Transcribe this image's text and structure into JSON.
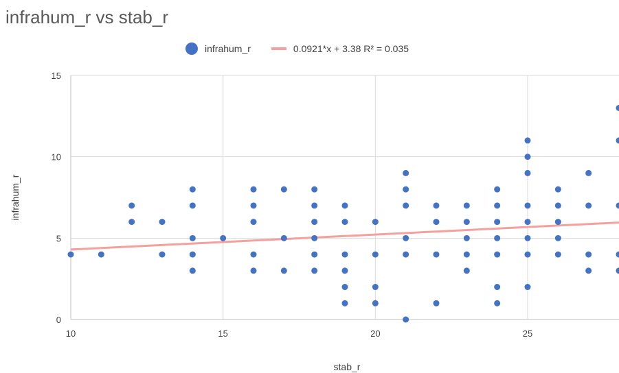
{
  "chart_data": {
    "type": "scatter",
    "title": "infrahum_r vs stab_r",
    "xlabel": "stab_r",
    "ylabel": "infrahum_r",
    "xlim": [
      10,
      28
    ],
    "ylim": [
      0,
      15
    ],
    "x_ticks": [
      10,
      15,
      20,
      25
    ],
    "y_ticks": [
      0,
      5,
      10,
      15
    ],
    "grid": true,
    "legend_position": "top",
    "series": [
      {
        "name": "infrahum_r",
        "color": "#4472C4",
        "points": [
          [
            10,
            4
          ],
          [
            11,
            4
          ],
          [
            12,
            6
          ],
          [
            12,
            7
          ],
          [
            13,
            4
          ],
          [
            13,
            6
          ],
          [
            14,
            3
          ],
          [
            14,
            4
          ],
          [
            14,
            5
          ],
          [
            14,
            7
          ],
          [
            14,
            8
          ],
          [
            15,
            5
          ],
          [
            16,
            3
          ],
          [
            16,
            4
          ],
          [
            16,
            6
          ],
          [
            16,
            7
          ],
          [
            16,
            8
          ],
          [
            17,
            3
          ],
          [
            17,
            5
          ],
          [
            17,
            8
          ],
          [
            18,
            3
          ],
          [
            18,
            4
          ],
          [
            18,
            5
          ],
          [
            18,
            6
          ],
          [
            18,
            7
          ],
          [
            18,
            8
          ],
          [
            19,
            1
          ],
          [
            19,
            2
          ],
          [
            19,
            3
          ],
          [
            19,
            4
          ],
          [
            19,
            6
          ],
          [
            19,
            7
          ],
          [
            20,
            1
          ],
          [
            20,
            2
          ],
          [
            20,
            4
          ],
          [
            20,
            6
          ],
          [
            21,
            0
          ],
          [
            21,
            4
          ],
          [
            21,
            5
          ],
          [
            21,
            7
          ],
          [
            21,
            8
          ],
          [
            21,
            9
          ],
          [
            22,
            1
          ],
          [
            22,
            4
          ],
          [
            22,
            6
          ],
          [
            22,
            7
          ],
          [
            23,
            3
          ],
          [
            23,
            4
          ],
          [
            23,
            5
          ],
          [
            23,
            6
          ],
          [
            23,
            7
          ],
          [
            24,
            1
          ],
          [
            24,
            2
          ],
          [
            24,
            4
          ],
          [
            24,
            5
          ],
          [
            24,
            6
          ],
          [
            24,
            7
          ],
          [
            24,
            8
          ],
          [
            25,
            2
          ],
          [
            25,
            4
          ],
          [
            25,
            5
          ],
          [
            25,
            6
          ],
          [
            25,
            7
          ],
          [
            25,
            9
          ],
          [
            25,
            10
          ],
          [
            25,
            11
          ],
          [
            26,
            4
          ],
          [
            26,
            5
          ],
          [
            26,
            6
          ],
          [
            26,
            7
          ],
          [
            26,
            8
          ],
          [
            27,
            3
          ],
          [
            27,
            4
          ],
          [
            27,
            7
          ],
          [
            27,
            9
          ],
          [
            28,
            3
          ],
          [
            28,
            4
          ],
          [
            28,
            7
          ],
          [
            28,
            11
          ],
          [
            28,
            13
          ]
        ]
      }
    ],
    "trendline": {
      "name": "0.0921*x + 3.38 R² = 0.035",
      "slope": 0.0921,
      "intercept": 3.38,
      "color": "#F4A09C"
    }
  }
}
